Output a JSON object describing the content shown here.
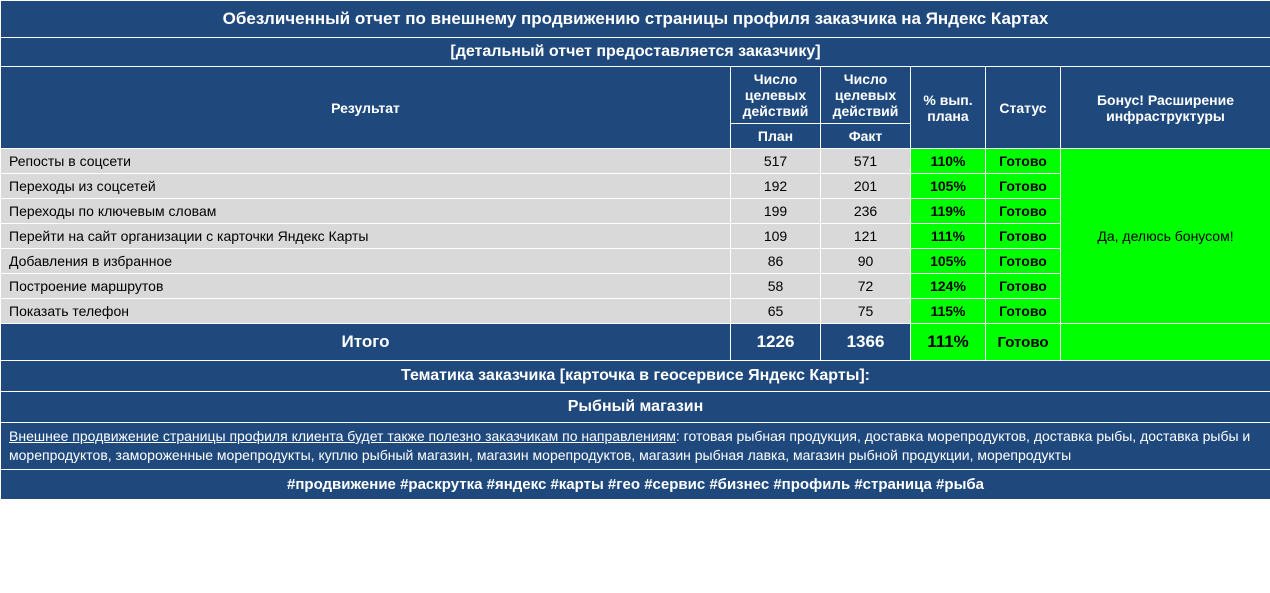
{
  "colors": {
    "header_bg": "#1f497d",
    "header_text": "#ffffff",
    "data_bg": "#d9d9d9",
    "data_text": "#000000",
    "success_bg": "#00ff00",
    "border": "#ffffff"
  },
  "title": "Обезличенный отчет по внешнему продвижению страницы профиля заказчика на Яндекс Картах",
  "subtitle": "[детальный отчет предоставляется заказчику]",
  "columns": {
    "result": "Результат",
    "plan_actions": "Число целевых действий",
    "fact_actions": "Число целевых действий",
    "plan": "План",
    "fact": "Факт",
    "pct": "% вып. плана",
    "status": "Статус",
    "bonus": "Бонус! Расширение инфраструктуры"
  },
  "rows": [
    {
      "label": "Репосты в соцсети",
      "plan": "517",
      "fact": "571",
      "pct": "110%",
      "status": "Готово"
    },
    {
      "label": "Переходы из соцсетей",
      "plan": "192",
      "fact": "201",
      "pct": "105%",
      "status": "Готово"
    },
    {
      "label": "Переходы по ключевым словам",
      "plan": "199",
      "fact": "236",
      "pct": "119%",
      "status": "Готово"
    },
    {
      "label": "Перейти на сайт организации с карточки Яндекс Карты",
      "plan": "109",
      "fact": "121",
      "pct": "111%",
      "status": "Готово"
    },
    {
      "label": "Добавления в избранное",
      "plan": "86",
      "fact": "90",
      "pct": "105%",
      "status": "Готово"
    },
    {
      "label": "Построение маршрутов",
      "plan": "58",
      "fact": "72",
      "pct": "124%",
      "status": "Готово"
    },
    {
      "label": "Показать телефон",
      "plan": "65",
      "fact": "75",
      "pct": "115%",
      "status": "Готово"
    }
  ],
  "bonus_text": "Да, делюсь бонусом!",
  "total": {
    "label": "Итого",
    "plan": "1226",
    "fact": "1366",
    "pct": "111%",
    "status": "Готово"
  },
  "theme_label": "Тематика заказчика [карточка в геосервисе Яндекс Карты]:",
  "theme_value": "Рыбный магазин",
  "description_lead": "Внешнее продвижение страницы профиля клиента будет также полезно заказчикам по направлениям",
  "description_rest": ": готовая рыбная продукция, доставка морепродуктов, доставка рыбы, доставка рыбы и морепродуктов, замороженные морепродукты, куплю рыбный магазин, магазин морепродуктов, магазин рыбная лавка, магазин рыбной продукции, морепродукты",
  "tags": "#продвижение #раскрутка #яндекс #карты #гео #сервис #бизнес #профиль #страница #рыба",
  "col_widths": {
    "result": 730,
    "plan": 90,
    "fact": 90,
    "pct": 75,
    "status": 75,
    "bonus": 210
  }
}
